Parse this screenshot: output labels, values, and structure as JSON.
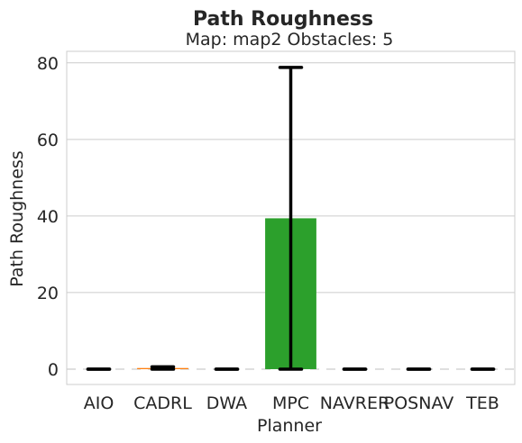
{
  "chart_data": {
    "type": "bar",
    "title": "Path Roughness",
    "subtitle": "Map: map2 Obstacles: 5",
    "xlabel": "Planner",
    "ylabel": "Path Roughness",
    "categories": [
      "AIO",
      "CADRL",
      "DWA",
      "MPC",
      "NAVRER",
      "POSNAV",
      "TEB"
    ],
    "values": [
      0,
      0.3,
      0,
      39.4,
      0,
      0,
      0
    ],
    "error_low": [
      0,
      0,
      0,
      0,
      0,
      0,
      0
    ],
    "error_high": [
      0,
      0.6,
      0,
      78.8,
      0,
      0,
      0
    ],
    "bar_colors": [
      "#1f77b4",
      "#ff7f0e",
      "#2ca02c",
      "#2ca02c",
      "#9467bd",
      "#8c564b",
      "#e377c2"
    ],
    "ylim": [
      -4,
      83
    ],
    "yticks": [
      0,
      20,
      40,
      60,
      80
    ],
    "grid": true,
    "zero_line": "dashed",
    "colors": {
      "grid": "#cccccc",
      "spine": "#cccccc",
      "errorbar": "#000000",
      "text": "#262626",
      "zero_line": "#cccccc"
    }
  }
}
